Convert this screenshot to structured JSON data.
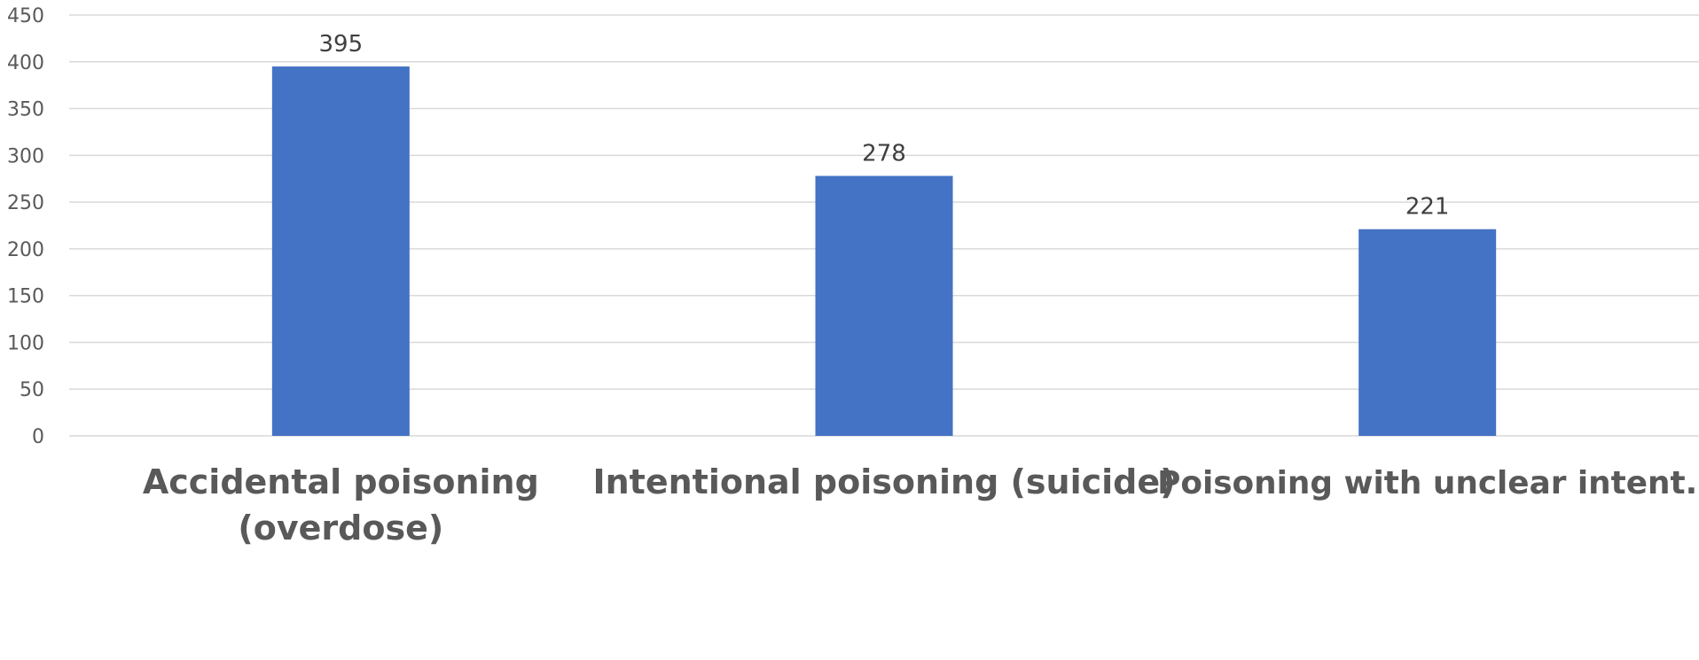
{
  "chart_data": {
    "type": "bar",
    "categories": [
      [
        "Accidental poisoning",
        "(overdose)"
      ],
      [
        "Intentional poisoning (suicide)"
      ],
      [
        "Poisoning with unclear intent."
      ]
    ],
    "values": [
      395,
      278,
      221
    ],
    "ylim": [
      0,
      450
    ],
    "yticks": [
      0,
      50,
      100,
      150,
      200,
      250,
      300,
      350,
      400,
      450
    ],
    "grid": true,
    "legend": "none",
    "title": "",
    "xlabel": "",
    "ylabel": ""
  },
  "colors": {
    "bar": "#4472C4",
    "grid": "#d9d9d9",
    "tick_text": "#595959",
    "data_label_text": "#404040",
    "category_text": "#595959"
  }
}
